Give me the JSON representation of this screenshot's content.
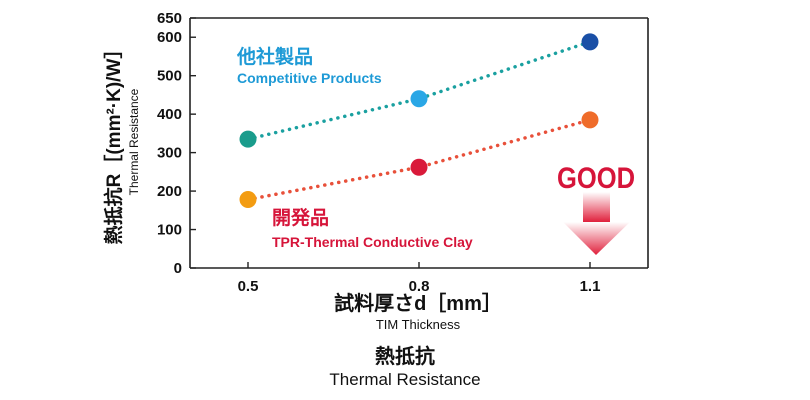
{
  "chart_data": {
    "type": "line",
    "x": [
      0.5,
      0.8,
      1.1
    ],
    "x_tick_labels": [
      "0.5",
      "0.8",
      "1.1"
    ],
    "y_ticks": [
      0,
      100,
      200,
      300,
      400,
      500,
      600,
      650
    ],
    "ylim": [
      0,
      650
    ],
    "xlabel": "試料厚さd［mm］",
    "xlabel_en": "TIM Thickness",
    "ylabel": "熱抵抗R［(mm²·K)/W］",
    "ylabel_en": "Thermal Resistance",
    "series": [
      {
        "name": "他社製品",
        "name_en": "Competitive Products",
        "values": [
          335,
          440,
          588
        ],
        "line_color": "#1aa0a0",
        "point_colors": [
          "#1a9c8c",
          "#2aa7e6",
          "#1a4fa6"
        ],
        "label_color": "#1e9ad6"
      },
      {
        "name": "開発品",
        "name_en": "TPR-Thermal Conductive Clay",
        "values": [
          178,
          262,
          385
        ],
        "line_color": "#e8503a",
        "point_colors": [
          "#f39c12",
          "#d91a3a",
          "#ef6c2a"
        ],
        "label_color": "#d6153a"
      }
    ],
    "grid": false,
    "annotation": {
      "text": "GOOD",
      "color": "#d6153a"
    }
  },
  "caption": {
    "title": "熱抵抗",
    "subtitle": "Thermal Resistance"
  }
}
